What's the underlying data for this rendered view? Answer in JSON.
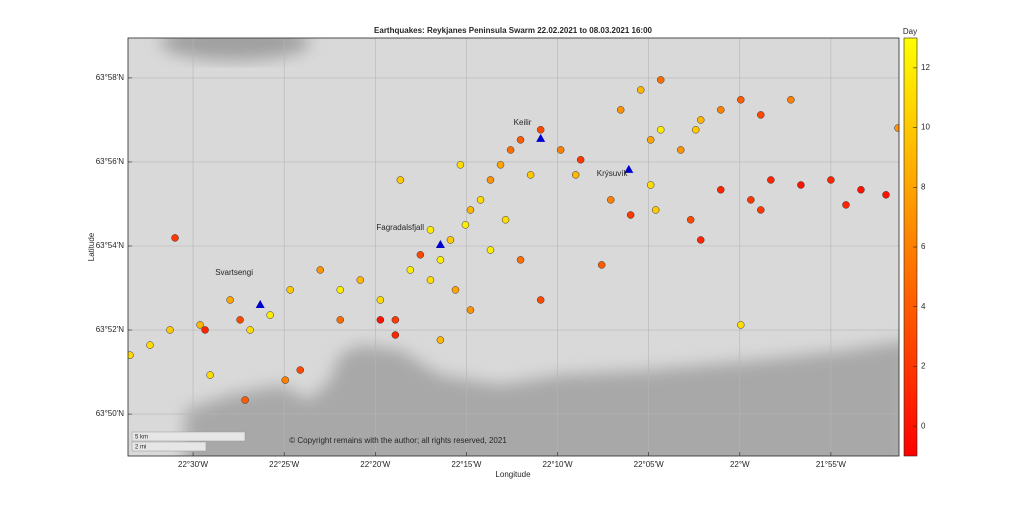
{
  "chart_data": {
    "type": "scatter",
    "title": "Earthquakes: Reykjanes Peninsula Swarm 22.02.2021 to 08.03.2021 16:00",
    "x_label": "Longitude",
    "y_label": "Latitude",
    "colorbar_label": "Day",
    "annotation": "© Copyright remains with the author; all rights reserved, 2021",
    "scale_bar": [
      "5 km",
      "2 mi"
    ],
    "xlim": [
      -22.5595,
      -21.8544
    ],
    "ylim": [
      63.8167,
      63.9825
    ],
    "xticks": [
      {
        "value": -22.5,
        "label": "22°30'W"
      },
      {
        "value": -22.41667,
        "label": "22°25'W"
      },
      {
        "value": -22.33333,
        "label": "22°20'W"
      },
      {
        "value": -22.25,
        "label": "22°15'W"
      },
      {
        "value": -22.16667,
        "label": "22°10'W"
      },
      {
        "value": -22.08333,
        "label": "22°05'W"
      },
      {
        "value": -22.0,
        "label": "22°W"
      },
      {
        "value": -21.91667,
        "label": "21°55'W"
      }
    ],
    "yticks": [
      {
        "value": 63.83333,
        "label": "63°50'N"
      },
      {
        "value": 63.86667,
        "label": "63°52'N"
      },
      {
        "value": 63.9,
        "label": "63°54'N"
      },
      {
        "value": 63.93333,
        "label": "63°56'N"
      },
      {
        "value": 63.96667,
        "label": "63°58'N"
      }
    ],
    "grid": true,
    "clim": [
      -1,
      13
    ],
    "cticks": [
      0,
      2,
      4,
      6,
      8,
      10,
      12
    ],
    "colormap": [
      "#ff0000",
      "#ffff00"
    ],
    "stations": [
      {
        "name": "Keilir",
        "lon": -22.1821,
        "lat": 63.9425
      },
      {
        "name": "Krýsuvík",
        "lon": -22.1015,
        "lat": 63.9302
      },
      {
        "name": "Fagradalsfjall",
        "lon": -22.2738,
        "lat": 63.9004
      },
      {
        "name": "Svartsengi",
        "lon": -22.4386,
        "lat": 63.8766
      }
    ],
    "station_color": "#0000cc",
    "series": [
      {
        "name": "Day",
        "x": [
          -22.5577,
          -22.5394,
          -22.5211,
          -22.4936,
          -22.4844,
          -22.4661,
          -22.4524,
          -22.4478,
          -22.4295,
          -22.4112,
          -22.402,
          -22.3837,
          -22.3654,
          -22.3471,
          -22.3287,
          -22.315,
          -22.3013,
          -22.2921,
          -22.2829,
          -22.2738,
          -22.2646,
          -22.26,
          -22.2509,
          -22.2463,
          -22.2371,
          -22.228,
          -22.2188,
          -22.2096,
          -22.2005,
          -22.1913,
          -22.1821,
          -22.1638,
          -22.1455,
          -22.2463,
          -22.2738,
          -22.2005,
          -22.1821,
          -22.3104,
          -22.2555,
          -22.1089,
          -22.0906,
          -22.0723,
          -22.0815,
          -22.0723,
          -22.054,
          -22.0357,
          -22.0174,
          -21.9991,
          -21.9808,
          -21.9533,
          -22.0815,
          -22.0769,
          -22.118,
          -22.0998,
          -22.0449,
          -22.0174,
          -21.9899,
          -21.9716,
          -21.9441,
          -21.9167,
          -21.8892,
          -21.8663,
          -21.9808,
          -22.0357,
          -22.1263,
          -21.9991,
          -21.9029,
          -21.8553,
          -22.5165,
          -22.489,
          -22.457,
          -22.3287,
          -22.315,
          -22.4157,
          -22.3654,
          -22.228,
          -22.2142,
          -22.2829,
          -22.1501,
          -22.0403
        ],
        "y": [
          63.8567,
          63.8607,
          63.8667,
          63.8687,
          63.8488,
          63.8786,
          63.8389,
          63.8667,
          63.8726,
          63.8826,
          63.8508,
          63.8905,
          63.8826,
          63.8865,
          63.8786,
          63.8707,
          63.8905,
          63.8965,
          63.8865,
          63.8945,
          63.9024,
          63.8826,
          63.9084,
          63.9143,
          63.9183,
          63.9262,
          63.9322,
          63.9381,
          63.9421,
          63.9282,
          63.9461,
          63.9381,
          63.9342,
          63.8746,
          63.8627,
          63.8945,
          63.8786,
          63.9262,
          63.9322,
          63.954,
          63.9619,
          63.9659,
          63.9421,
          63.9461,
          63.9381,
          63.95,
          63.954,
          63.958,
          63.952,
          63.958,
          63.9242,
          63.9143,
          63.9183,
          63.9123,
          63.9104,
          63.9223,
          63.9183,
          63.9262,
          63.9242,
          63.9262,
          63.9223,
          63.9203,
          63.9143,
          63.9024,
          63.8925,
          63.8687,
          63.9163,
          63.9468,
          63.9032,
          63.8667,
          63.8707,
          63.8707,
          63.8647,
          63.8468,
          63.8707,
          63.8984,
          63.9104,
          63.9064,
          63.9282,
          63.9461
        ],
        "c": [
          11,
          11,
          10,
          9,
          11,
          8,
          4,
          11,
          12,
          10,
          3,
          7,
          12,
          9,
          11,
          2,
          12,
          3,
          11,
          12,
          10,
          8,
          12,
          9,
          11,
          7,
          8,
          5,
          4,
          10,
          3,
          6,
          2,
          7,
          9,
          5,
          3,
          10,
          11,
          7,
          9,
          5,
          8,
          12,
          7,
          9,
          6,
          4,
          3,
          6,
          11,
          10,
          6,
          2,
          3,
          1,
          2,
          1,
          0,
          1,
          0,
          0,
          2,
          1,
          4,
          11,
          1,
          7,
          2,
          1,
          3,
          0,
          1,
          6,
          5,
          12,
          11,
          12,
          9,
          10
        ]
      }
    ]
  }
}
